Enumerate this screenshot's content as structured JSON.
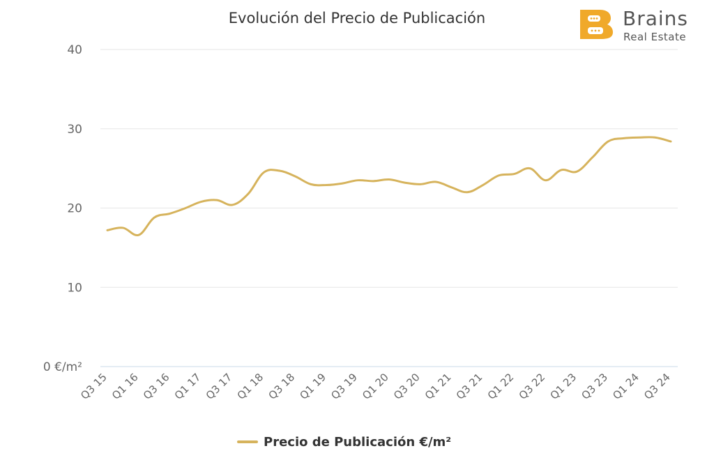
{
  "colors": {
    "line": "#d6b35c",
    "grid": "#e6e6e6",
    "baseline": "#c8d8e8",
    "text": "#666666",
    "logo": "#f0a92a"
  },
  "logo": {
    "brand": "Brains",
    "sub": "Real Estate",
    "icon": "b-chat-logo-icon"
  },
  "chart_data": {
    "type": "line",
    "title": "Evolución del Precio de Publicación",
    "xlabel": "",
    "ylabel": "",
    "ylim": [
      0,
      40
    ],
    "yticks": [
      {
        "value": 0,
        "label": "0 €/m²"
      },
      {
        "value": 10,
        "label": "10"
      },
      {
        "value": 20,
        "label": "20"
      },
      {
        "value": 30,
        "label": "30"
      },
      {
        "value": 40,
        "label": "40"
      }
    ],
    "grid": true,
    "legend_position": "bottom-center",
    "x": [
      "Q3 15",
      "Q4 15",
      "Q1 16",
      "Q2 16",
      "Q3 16",
      "Q4 16",
      "Q1 17",
      "Q2 17",
      "Q3 17",
      "Q4 17",
      "Q1 18",
      "Q2 18",
      "Q3 18",
      "Q4 18",
      "Q1 19",
      "Q2 19",
      "Q3 19",
      "Q4 19",
      "Q1 20",
      "Q2 20",
      "Q3 20",
      "Q4 20",
      "Q1 21",
      "Q2 21",
      "Q3 21",
      "Q4 21",
      "Q1 22",
      "Q2 22",
      "Q3 22",
      "Q4 22",
      "Q1 23",
      "Q2 23",
      "Q3 23",
      "Q4 23",
      "Q1 24",
      "Q2 24",
      "Q3 24"
    ],
    "tick_labels": [
      "Q3 15",
      "Q1 16",
      "Q3 16",
      "Q1 17",
      "Q3 17",
      "Q1 18",
      "Q3 18",
      "Q1 19",
      "Q3 19",
      "Q1 20",
      "Q3 20",
      "Q1 21",
      "Q3 21",
      "Q1 22",
      "Q3 22",
      "Q1 23",
      "Q3 23",
      "Q1 24",
      "Q3 24"
    ],
    "series": [
      {
        "name": "Precio de Publicación €/m²",
        "values": [
          17.2,
          17.5,
          16.6,
          18.8,
          19.3,
          20.0,
          20.8,
          21.0,
          20.4,
          21.8,
          24.5,
          24.7,
          24.0,
          23.0,
          22.9,
          23.1,
          23.5,
          23.4,
          23.6,
          23.2,
          23.0,
          23.3,
          22.6,
          22.0,
          22.9,
          24.1,
          24.3,
          25.0,
          23.5,
          24.8,
          24.6,
          26.4,
          28.4,
          28.8,
          28.9,
          28.9,
          28.4
        ]
      }
    ]
  }
}
